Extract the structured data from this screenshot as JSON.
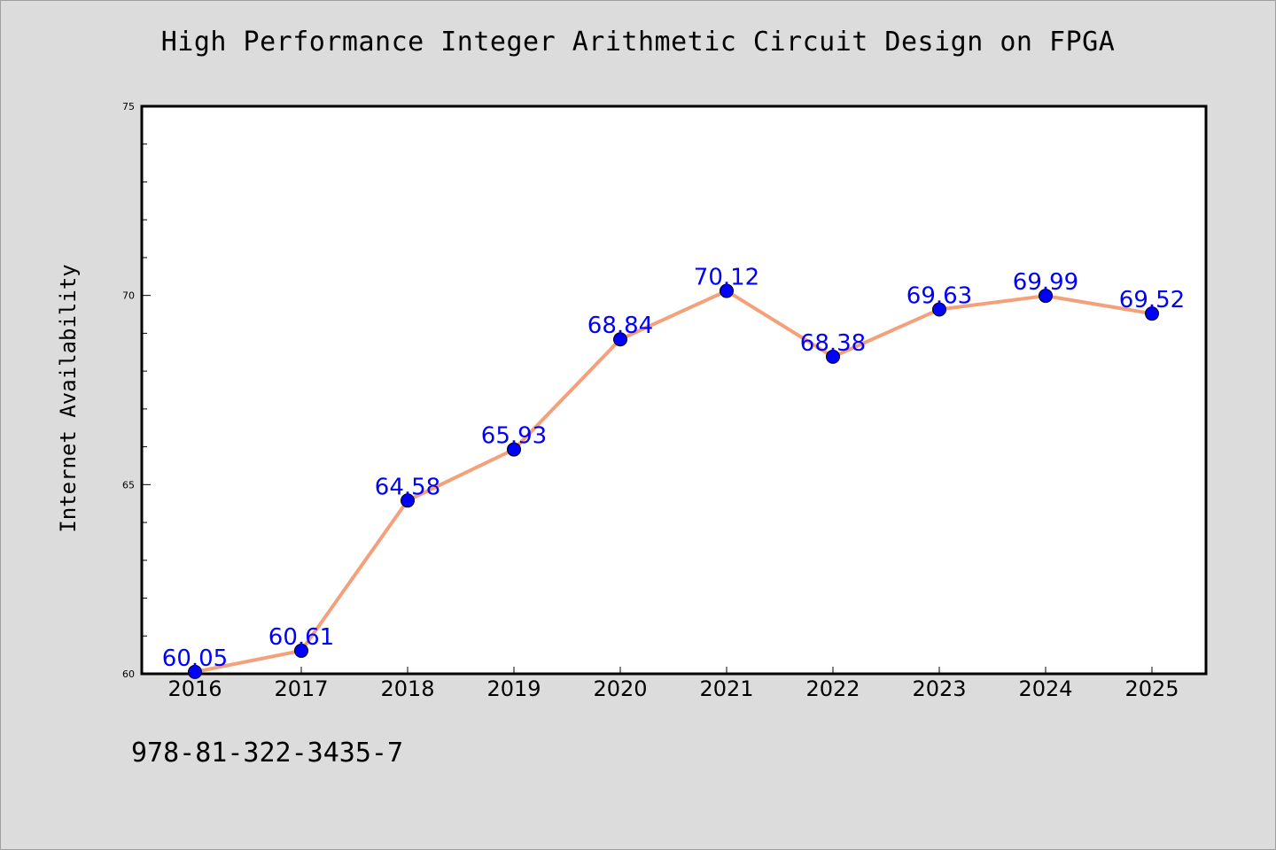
{
  "chart_data": {
    "type": "line",
    "title": "High Performance Integer Arithmetic Circuit Design on FPGA",
    "xlabel": "",
    "ylabel": "Internet Availability",
    "categories": [
      "2016",
      "2017",
      "2018",
      "2019",
      "2020",
      "2021",
      "2022",
      "2023",
      "2024",
      "2025"
    ],
    "series": [
      {
        "values": [
          60.05,
          60.61,
          64.58,
          65.93,
          68.84,
          70.12,
          68.38,
          69.63,
          69.99,
          69.52
        ]
      }
    ],
    "data_labels": [
      "60.05",
      "60.61",
      "64.58",
      "65.93",
      "68.84",
      "70.12",
      "68.38",
      "69.63",
      "69.99",
      "69.52"
    ],
    "ylim": [
      60,
      75
    ],
    "yticks": [
      "60",
      "65",
      "70",
      "75"
    ],
    "grid": false,
    "colors": {
      "line": "#f4a07a",
      "marker": "#0000ff",
      "label": "#0000ff",
      "background": "#dcdcdc",
      "plot_bg": "#ffffff"
    }
  },
  "footer_text": "978-81-322-3435-7"
}
